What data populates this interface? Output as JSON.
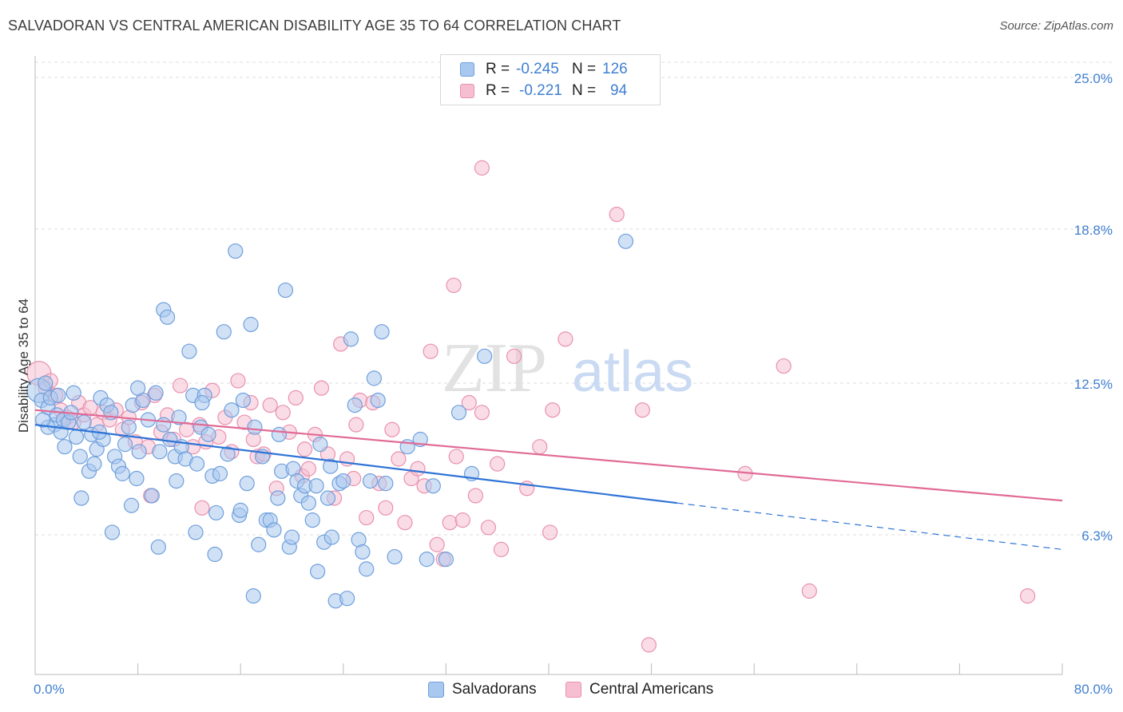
{
  "title": "SALVADORAN VS CENTRAL AMERICAN DISABILITY AGE 35 TO 64 CORRELATION CHART",
  "source": "Source: ZipAtlas.com",
  "watermark": {
    "zip": "ZIP",
    "atlas": "atlas"
  },
  "legend": {
    "rows": [
      {
        "r_label": "R =",
        "r_value": "-0.245",
        "n_label": "N =",
        "n_value": "126"
      },
      {
        "r_label": "R =",
        "r_value": "-0.221",
        "n_label": "N =",
        "n_value": "94"
      }
    ]
  },
  "bottom_legend": {
    "series1": "Salvadorans",
    "series2": "Central Americans"
  },
  "colors": {
    "blue_fill": "#a9c8ef",
    "blue_stroke": "#6f9fdc",
    "blue_line": "#2f74d6",
    "pink_fill": "#f6bfd1",
    "pink_stroke": "#e991ae",
    "pink_line": "#e06b96",
    "tick_text": "#3f7fd0",
    "grid": "#dcdcdc"
  },
  "chart_data": {
    "type": "scatter",
    "title": "SALVADORAN VS CENTRAL AMERICAN DISABILITY AGE 35 TO 64 CORRELATION CHART",
    "xlabel": "",
    "ylabel": "Disability Age 35 to 64",
    "xlim": [
      0,
      80
    ],
    "ylim": [
      0,
      27
    ],
    "x_tick_labels": [
      "0.0%",
      "80.0%"
    ],
    "y_ticks": [
      6.3,
      12.5,
      18.8,
      25.0
    ],
    "y_tick_labels": [
      "6.3%",
      "12.5%",
      "18.8%",
      "25.0%"
    ],
    "grid": "horizontal dashed",
    "legend_position": "top-center",
    "series": [
      {
        "name": "Salvadorans",
        "r": -0.245,
        "n": 126,
        "trend": {
          "x": [
            0,
            50
          ],
          "y": [
            10.8,
            7.6
          ],
          "dashed_to": [
            80,
            5.7
          ]
        },
        "points": [
          [
            0.3,
            12.2
          ],
          [
            0.5,
            11.8
          ],
          [
            0.8,
            12.5
          ],
          [
            1.0,
            11.5
          ],
          [
            1.2,
            11.9
          ],
          [
            1.5,
            10.8
          ],
          [
            1.7,
            11.2
          ],
          [
            2.0,
            10.5
          ],
          [
            2.2,
            11.0
          ],
          [
            2.6,
            10.9
          ],
          [
            3.0,
            12.1
          ],
          [
            3.2,
            10.3
          ],
          [
            3.5,
            9.5
          ],
          [
            3.8,
            10.9
          ],
          [
            4.2,
            8.9
          ],
          [
            4.4,
            10.4
          ],
          [
            4.8,
            9.8
          ],
          [
            5.1,
            11.9
          ],
          [
            5.3,
            10.2
          ],
          [
            5.6,
            11.6
          ],
          [
            5.9,
            11.3
          ],
          [
            6.2,
            9.5
          ],
          [
            6.5,
            9.1
          ],
          [
            6.8,
            8.8
          ],
          [
            7.0,
            10.0
          ],
          [
            7.3,
            10.7
          ],
          [
            7.6,
            11.6
          ],
          [
            7.9,
            8.6
          ],
          [
            8.1,
            9.7
          ],
          [
            8.4,
            11.8
          ],
          [
            8.8,
            11.0
          ],
          [
            9.1,
            7.9
          ],
          [
            9.4,
            12.1
          ],
          [
            9.7,
            9.7
          ],
          [
            10.0,
            15.5
          ],
          [
            10.3,
            15.2
          ],
          [
            10.5,
            10.2
          ],
          [
            10.9,
            9.5
          ],
          [
            11.2,
            11.1
          ],
          [
            11.4,
            9.9
          ],
          [
            11.7,
            9.4
          ],
          [
            12.0,
            13.8
          ],
          [
            12.3,
            12.0
          ],
          [
            12.6,
            9.2
          ],
          [
            12.9,
            10.7
          ],
          [
            13.2,
            12.0
          ],
          [
            13.5,
            10.4
          ],
          [
            13.8,
            8.7
          ],
          [
            14.1,
            7.2
          ],
          [
            14.4,
            8.8
          ],
          [
            14.7,
            14.6
          ],
          [
            15.0,
            9.6
          ],
          [
            15.3,
            11.4
          ],
          [
            15.6,
            17.9
          ],
          [
            15.9,
            7.1
          ],
          [
            16.2,
            11.8
          ],
          [
            16.5,
            8.4
          ],
          [
            16.8,
            14.9
          ],
          [
            17.1,
            10.7
          ],
          [
            17.4,
            5.9
          ],
          [
            17.7,
            9.5
          ],
          [
            18.0,
            6.9
          ],
          [
            18.3,
            6.9
          ],
          [
            18.6,
            6.5
          ],
          [
            18.9,
            7.8
          ],
          [
            19.2,
            8.9
          ],
          [
            19.5,
            16.3
          ],
          [
            19.8,
            5.8
          ],
          [
            20.1,
            9.0
          ],
          [
            20.4,
            8.5
          ],
          [
            20.7,
            7.9
          ],
          [
            21.0,
            8.3
          ],
          [
            21.3,
            7.6
          ],
          [
            21.6,
            6.9
          ],
          [
            21.9,
            8.3
          ],
          [
            22.2,
            10.0
          ],
          [
            22.5,
            6.0
          ],
          [
            22.8,
            7.8
          ],
          [
            23.1,
            6.2
          ],
          [
            23.4,
            3.6
          ],
          [
            23.7,
            8.4
          ],
          [
            24.0,
            8.5
          ],
          [
            24.3,
            3.7
          ],
          [
            24.6,
            14.3
          ],
          [
            24.9,
            11.6
          ],
          [
            25.2,
            6.1
          ],
          [
            25.5,
            5.6
          ],
          [
            25.8,
            4.9
          ],
          [
            26.1,
            8.5
          ],
          [
            26.4,
            12.7
          ],
          [
            26.7,
            11.8
          ],
          [
            27.0,
            14.6
          ],
          [
            27.3,
            8.4
          ],
          [
            28.0,
            5.4
          ],
          [
            29.0,
            9.9
          ],
          [
            30.0,
            10.2
          ],
          [
            30.5,
            5.3
          ],
          [
            31.0,
            8.3
          ],
          [
            32.0,
            5.3
          ],
          [
            33.0,
            11.3
          ],
          [
            34.0,
            8.8
          ],
          [
            35.0,
            13.6
          ],
          [
            3.6,
            7.8
          ],
          [
            6.0,
            6.4
          ],
          [
            7.5,
            7.5
          ],
          [
            9.6,
            5.8
          ],
          [
            12.5,
            6.4
          ],
          [
            14.0,
            5.5
          ],
          [
            17.0,
            3.8
          ],
          [
            20.0,
            6.2
          ],
          [
            22.0,
            4.8
          ],
          [
            8.0,
            12.3
          ],
          [
            1.0,
            10.7
          ],
          [
            2.3,
            9.9
          ],
          [
            4.6,
            9.2
          ],
          [
            11.0,
            8.5
          ],
          [
            13.0,
            11.7
          ],
          [
            16.0,
            7.3
          ],
          [
            19.0,
            10.4
          ],
          [
            23.0,
            9.1
          ],
          [
            5.0,
            10.5
          ],
          [
            10.0,
            10.8
          ],
          [
            46.0,
            18.3
          ],
          [
            2.8,
            11.3
          ],
          [
            0.6,
            11.0
          ],
          [
            1.8,
            12.0
          ]
        ]
      },
      {
        "name": "Central Americans",
        "r": -0.221,
        "n": 94,
        "trend": {
          "x": [
            0,
            80
          ],
          "y": [
            11.4,
            7.7
          ]
        },
        "points": [
          [
            0.3,
            12.9
          ],
          [
            0.8,
            12.3
          ],
          [
            1.2,
            12.6
          ],
          [
            1.6,
            12.0
          ],
          [
            2.0,
            11.4
          ],
          [
            2.5,
            11.1
          ],
          [
            3.0,
            10.9
          ],
          [
            3.4,
            11.7
          ],
          [
            3.8,
            11.2
          ],
          [
            4.3,
            11.5
          ],
          [
            4.8,
            10.8
          ],
          [
            5.3,
            11.3
          ],
          [
            5.8,
            11.0
          ],
          [
            6.3,
            11.4
          ],
          [
            6.8,
            10.6
          ],
          [
            7.3,
            11.1
          ],
          [
            7.8,
            10.1
          ],
          [
            8.3,
            11.7
          ],
          [
            8.8,
            9.9
          ],
          [
            9.3,
            12.0
          ],
          [
            9.8,
            10.5
          ],
          [
            10.3,
            11.2
          ],
          [
            10.8,
            10.2
          ],
          [
            11.3,
            12.4
          ],
          [
            11.8,
            10.6
          ],
          [
            12.3,
            9.9
          ],
          [
            12.8,
            10.8
          ],
          [
            13.3,
            10.1
          ],
          [
            13.8,
            12.2
          ],
          [
            14.3,
            10.3
          ],
          [
            14.8,
            11.1
          ],
          [
            15.3,
            9.7
          ],
          [
            15.8,
            12.6
          ],
          [
            16.3,
            10.9
          ],
          [
            16.8,
            11.7
          ],
          [
            17.3,
            9.5
          ],
          [
            17.8,
            9.6
          ],
          [
            18.3,
            11.6
          ],
          [
            18.8,
            8.2
          ],
          [
            19.3,
            11.3
          ],
          [
            19.8,
            10.5
          ],
          [
            20.3,
            11.9
          ],
          [
            20.8,
            8.7
          ],
          [
            21.3,
            9.0
          ],
          [
            21.8,
            10.4
          ],
          [
            22.3,
            12.3
          ],
          [
            22.8,
            9.6
          ],
          [
            23.3,
            7.8
          ],
          [
            23.8,
            14.1
          ],
          [
            24.3,
            9.4
          ],
          [
            24.8,
            8.6
          ],
          [
            25.3,
            11.8
          ],
          [
            25.8,
            7.0
          ],
          [
            26.3,
            11.7
          ],
          [
            26.8,
            8.4
          ],
          [
            27.3,
            7.4
          ],
          [
            27.8,
            10.6
          ],
          [
            28.3,
            9.4
          ],
          [
            28.8,
            6.8
          ],
          [
            29.3,
            8.6
          ],
          [
            29.8,
            9.0
          ],
          [
            30.3,
            8.3
          ],
          [
            30.8,
            13.8
          ],
          [
            31.3,
            5.9
          ],
          [
            31.8,
            5.3
          ],
          [
            32.3,
            6.8
          ],
          [
            32.8,
            9.5
          ],
          [
            33.3,
            6.9
          ],
          [
            33.8,
            11.7
          ],
          [
            34.3,
            7.9
          ],
          [
            34.8,
            11.3
          ],
          [
            35.3,
            6.6
          ],
          [
            36.3,
            5.7
          ],
          [
            37.3,
            13.6
          ],
          [
            38.3,
            8.2
          ],
          [
            39.3,
            9.9
          ],
          [
            40.3,
            11.4
          ],
          [
            41.3,
            14.3
          ],
          [
            45.3,
            19.4
          ],
          [
            55.3,
            8.8
          ],
          [
            58.3,
            13.2
          ],
          [
            60.3,
            4.0
          ],
          [
            77.3,
            3.8
          ],
          [
            34.8,
            21.3
          ],
          [
            32.6,
            16.5
          ],
          [
            47.3,
            11.4
          ],
          [
            47.8,
            1.8
          ],
          [
            40.1,
            6.4
          ],
          [
            36.0,
            9.2
          ],
          [
            21.0,
            9.8
          ],
          [
            17.0,
            10.2
          ],
          [
            13.0,
            7.4
          ],
          [
            25.0,
            10.8
          ],
          [
            9.0,
            7.9
          ]
        ]
      }
    ]
  }
}
